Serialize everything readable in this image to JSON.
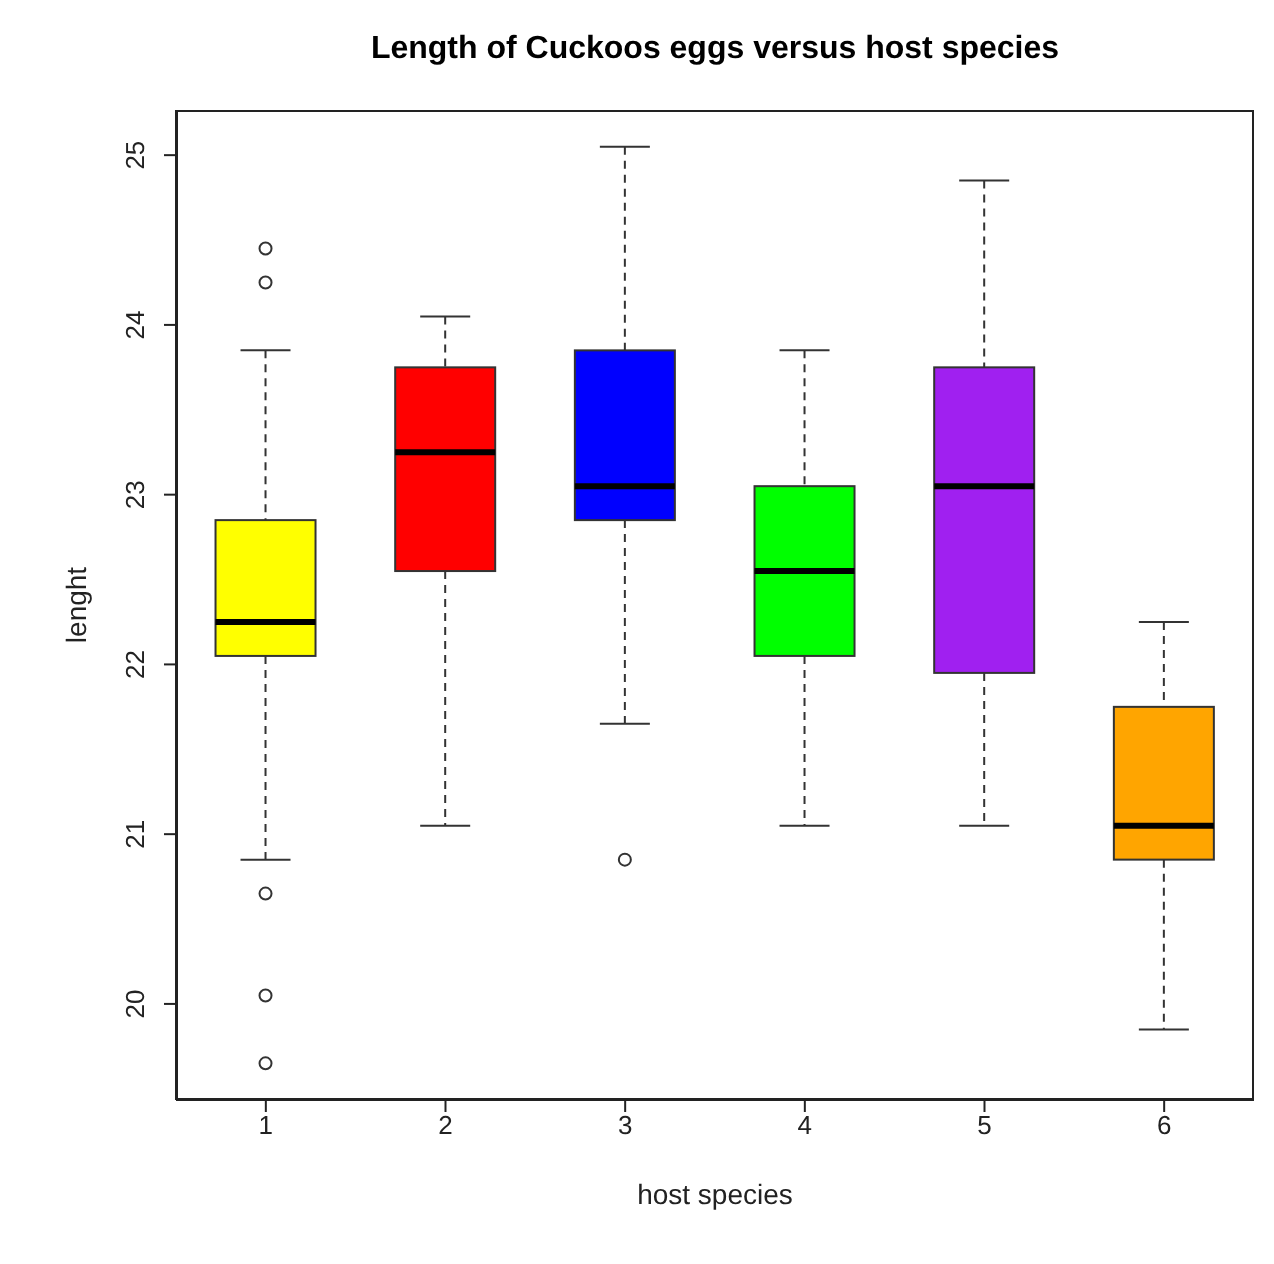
{
  "chart_data": {
    "type": "box",
    "title": "Length of Cuckoos eggs versus host species",
    "xlabel": "host species",
    "ylabel": "lenght",
    "categories": [
      "1",
      "2",
      "3",
      "4",
      "5",
      "6"
    ],
    "colors": [
      "#ffff00",
      "#ff0000",
      "#0000ff",
      "#00ff00",
      "#a020f0",
      "#ffa500"
    ],
    "boxes": [
      {
        "low": 20.85,
        "q1": 22.05,
        "median": 22.25,
        "q3": 22.85,
        "high": 23.85,
        "outliers": [
          24.45,
          24.25,
          20.65,
          20.05,
          19.65
        ]
      },
      {
        "low": 21.05,
        "q1": 22.55,
        "median": 23.25,
        "q3": 23.75,
        "high": 24.05
      },
      {
        "low": 21.65,
        "q1": 22.85,
        "median": 23.05,
        "q3": 23.85,
        "high": 25.05,
        "outliers": [
          20.85
        ]
      },
      {
        "low": 21.05,
        "q1": 22.05,
        "median": 22.55,
        "q3": 23.05,
        "high": 23.85
      },
      {
        "low": 21.05,
        "q1": 21.95,
        "median": 23.05,
        "q3": 23.75,
        "high": 24.85
      },
      {
        "low": 19.85,
        "q1": 20.85,
        "median": 21.05,
        "q3": 21.75,
        "high": 22.25
      }
    ],
    "ylim": [
      19.434,
      25.266
    ],
    "yticks": [
      20,
      21,
      22,
      23,
      24,
      25
    ]
  }
}
